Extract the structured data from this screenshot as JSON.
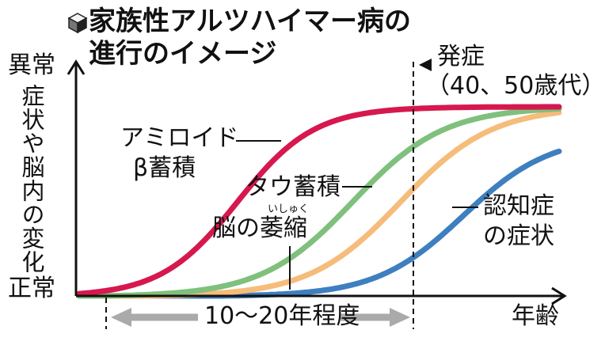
{
  "title_line1": "家族性アルツハイマー病の",
  "title_line2": "進行のイメージ",
  "y_top_label": "異常",
  "y_bottom_label": "正常",
  "y_axis_label": "症状や脳内の変化",
  "x_axis_label": "年齢",
  "onset_label_line1": "発症",
  "onset_label_line2": "（40、50歳代）",
  "span_label": "10〜20年程度",
  "colors": {
    "amyloid": "#d6184e",
    "tau": "#7fc07c",
    "atrophy": "#f5bc7a",
    "symptoms": "#3e7fbf",
    "arrow_gray": "#aaaaaa"
  },
  "chart_data": {
    "type": "line",
    "title": "家族性アルツハイマー病の進行のイメージ",
    "xlabel": "年齢",
    "ylabel": "症状や脳内の変化",
    "y_range_labels": [
      "正常",
      "異常"
    ],
    "annotations": [
      "発症（40、50歳代）",
      "10〜20年程度"
    ],
    "series": [
      {
        "key": "amyloid",
        "name": "アミロイドβ蓄積",
        "midpoint": 0.33,
        "steepness": 12.5,
        "top": 1.0
      },
      {
        "key": "tau",
        "name": "タウ蓄積",
        "midpoint": 0.57,
        "steepness": 10.5,
        "top": 1.0
      },
      {
        "key": "atrophy",
        "name": "脳の萎縮",
        "midpoint": 0.67,
        "steepness": 10.5,
        "top": 1.0
      },
      {
        "key": "symptoms",
        "name": "認知症の症状",
        "midpoint": 0.8,
        "steepness": 11.0,
        "top": 0.85
      }
    ]
  },
  "labels": {
    "amyloid_line1": "アミロイド",
    "amyloid_line2": "β蓄積",
    "tau": "タウ蓄積",
    "atrophy": "脳の萎縮",
    "atrophy_ruby": "いしゅく",
    "symptoms_line1": "認知症",
    "symptoms_line2": "の症状"
  }
}
